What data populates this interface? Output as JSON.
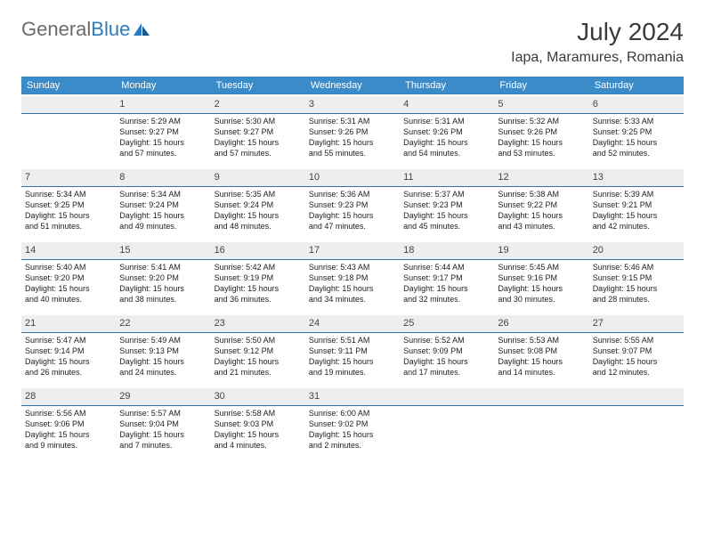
{
  "brand": {
    "part1": "General",
    "part2": "Blue"
  },
  "title": "July 2024",
  "location": "Iapa, Maramures, Romania",
  "colors": {
    "header_bg": "#3b8bc9",
    "header_text": "#ffffff",
    "daynum_bg": "#eceeef",
    "daynum_border": "#3b6fa0",
    "logo_gray": "#6b6b6b",
    "logo_blue": "#2b7bbf",
    "text": "#222222"
  },
  "weekdays": [
    "Sunday",
    "Monday",
    "Tuesday",
    "Wednesday",
    "Thursday",
    "Friday",
    "Saturday"
  ],
  "weeks": [
    [
      {
        "day": "",
        "lines": []
      },
      {
        "day": "1",
        "lines": [
          "Sunrise: 5:29 AM",
          "Sunset: 9:27 PM",
          "Daylight: 15 hours",
          "and 57 minutes."
        ]
      },
      {
        "day": "2",
        "lines": [
          "Sunrise: 5:30 AM",
          "Sunset: 9:27 PM",
          "Daylight: 15 hours",
          "and 57 minutes."
        ]
      },
      {
        "day": "3",
        "lines": [
          "Sunrise: 5:31 AM",
          "Sunset: 9:26 PM",
          "Daylight: 15 hours",
          "and 55 minutes."
        ]
      },
      {
        "day": "4",
        "lines": [
          "Sunrise: 5:31 AM",
          "Sunset: 9:26 PM",
          "Daylight: 15 hours",
          "and 54 minutes."
        ]
      },
      {
        "day": "5",
        "lines": [
          "Sunrise: 5:32 AM",
          "Sunset: 9:26 PM",
          "Daylight: 15 hours",
          "and 53 minutes."
        ]
      },
      {
        "day": "6",
        "lines": [
          "Sunrise: 5:33 AM",
          "Sunset: 9:25 PM",
          "Daylight: 15 hours",
          "and 52 minutes."
        ]
      }
    ],
    [
      {
        "day": "7",
        "lines": [
          "Sunrise: 5:34 AM",
          "Sunset: 9:25 PM",
          "Daylight: 15 hours",
          "and 51 minutes."
        ]
      },
      {
        "day": "8",
        "lines": [
          "Sunrise: 5:34 AM",
          "Sunset: 9:24 PM",
          "Daylight: 15 hours",
          "and 49 minutes."
        ]
      },
      {
        "day": "9",
        "lines": [
          "Sunrise: 5:35 AM",
          "Sunset: 9:24 PM",
          "Daylight: 15 hours",
          "and 48 minutes."
        ]
      },
      {
        "day": "10",
        "lines": [
          "Sunrise: 5:36 AM",
          "Sunset: 9:23 PM",
          "Daylight: 15 hours",
          "and 47 minutes."
        ]
      },
      {
        "day": "11",
        "lines": [
          "Sunrise: 5:37 AM",
          "Sunset: 9:23 PM",
          "Daylight: 15 hours",
          "and 45 minutes."
        ]
      },
      {
        "day": "12",
        "lines": [
          "Sunrise: 5:38 AM",
          "Sunset: 9:22 PM",
          "Daylight: 15 hours",
          "and 43 minutes."
        ]
      },
      {
        "day": "13",
        "lines": [
          "Sunrise: 5:39 AM",
          "Sunset: 9:21 PM",
          "Daylight: 15 hours",
          "and 42 minutes."
        ]
      }
    ],
    [
      {
        "day": "14",
        "lines": [
          "Sunrise: 5:40 AM",
          "Sunset: 9:20 PM",
          "Daylight: 15 hours",
          "and 40 minutes."
        ]
      },
      {
        "day": "15",
        "lines": [
          "Sunrise: 5:41 AM",
          "Sunset: 9:20 PM",
          "Daylight: 15 hours",
          "and 38 minutes."
        ]
      },
      {
        "day": "16",
        "lines": [
          "Sunrise: 5:42 AM",
          "Sunset: 9:19 PM",
          "Daylight: 15 hours",
          "and 36 minutes."
        ]
      },
      {
        "day": "17",
        "lines": [
          "Sunrise: 5:43 AM",
          "Sunset: 9:18 PM",
          "Daylight: 15 hours",
          "and 34 minutes."
        ]
      },
      {
        "day": "18",
        "lines": [
          "Sunrise: 5:44 AM",
          "Sunset: 9:17 PM",
          "Daylight: 15 hours",
          "and 32 minutes."
        ]
      },
      {
        "day": "19",
        "lines": [
          "Sunrise: 5:45 AM",
          "Sunset: 9:16 PM",
          "Daylight: 15 hours",
          "and 30 minutes."
        ]
      },
      {
        "day": "20",
        "lines": [
          "Sunrise: 5:46 AM",
          "Sunset: 9:15 PM",
          "Daylight: 15 hours",
          "and 28 minutes."
        ]
      }
    ],
    [
      {
        "day": "21",
        "lines": [
          "Sunrise: 5:47 AM",
          "Sunset: 9:14 PM",
          "Daylight: 15 hours",
          "and 26 minutes."
        ]
      },
      {
        "day": "22",
        "lines": [
          "Sunrise: 5:49 AM",
          "Sunset: 9:13 PM",
          "Daylight: 15 hours",
          "and 24 minutes."
        ]
      },
      {
        "day": "23",
        "lines": [
          "Sunrise: 5:50 AM",
          "Sunset: 9:12 PM",
          "Daylight: 15 hours",
          "and 21 minutes."
        ]
      },
      {
        "day": "24",
        "lines": [
          "Sunrise: 5:51 AM",
          "Sunset: 9:11 PM",
          "Daylight: 15 hours",
          "and 19 minutes."
        ]
      },
      {
        "day": "25",
        "lines": [
          "Sunrise: 5:52 AM",
          "Sunset: 9:09 PM",
          "Daylight: 15 hours",
          "and 17 minutes."
        ]
      },
      {
        "day": "26",
        "lines": [
          "Sunrise: 5:53 AM",
          "Sunset: 9:08 PM",
          "Daylight: 15 hours",
          "and 14 minutes."
        ]
      },
      {
        "day": "27",
        "lines": [
          "Sunrise: 5:55 AM",
          "Sunset: 9:07 PM",
          "Daylight: 15 hours",
          "and 12 minutes."
        ]
      }
    ],
    [
      {
        "day": "28",
        "lines": [
          "Sunrise: 5:56 AM",
          "Sunset: 9:06 PM",
          "Daylight: 15 hours",
          "and 9 minutes."
        ]
      },
      {
        "day": "29",
        "lines": [
          "Sunrise: 5:57 AM",
          "Sunset: 9:04 PM",
          "Daylight: 15 hours",
          "and 7 minutes."
        ]
      },
      {
        "day": "30",
        "lines": [
          "Sunrise: 5:58 AM",
          "Sunset: 9:03 PM",
          "Daylight: 15 hours",
          "and 4 minutes."
        ]
      },
      {
        "day": "31",
        "lines": [
          "Sunrise: 6:00 AM",
          "Sunset: 9:02 PM",
          "Daylight: 15 hours",
          "and 2 minutes."
        ]
      },
      {
        "day": "",
        "lines": []
      },
      {
        "day": "",
        "lines": []
      },
      {
        "day": "",
        "lines": []
      }
    ]
  ]
}
